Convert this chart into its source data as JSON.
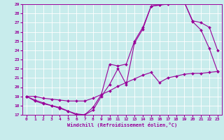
{
  "xlabel": "Windchill (Refroidissement éolien,°C)",
  "bg_color": "#c8ecec",
  "line_color": "#990099",
  "grid_color": "#ffffff",
  "xlim": [
    -0.5,
    23.5
  ],
  "ylim": [
    17,
    29
  ],
  "yticks": [
    17,
    18,
    19,
    20,
    21,
    22,
    23,
    24,
    25,
    26,
    27,
    28,
    29
  ],
  "xticks": [
    0,
    1,
    2,
    3,
    4,
    5,
    6,
    7,
    8,
    9,
    10,
    11,
    12,
    13,
    14,
    15,
    16,
    17,
    18,
    19,
    20,
    21,
    22,
    23
  ],
  "line1_x": [
    0,
    1,
    2,
    3,
    4,
    5,
    6,
    7,
    8,
    9,
    10,
    11,
    12,
    13,
    14,
    15,
    16,
    17,
    18,
    19,
    20,
    21,
    22,
    23
  ],
  "line1_y": [
    19.0,
    18.5,
    18.2,
    18.0,
    17.8,
    17.4,
    17.1,
    17.0,
    17.8,
    19.2,
    22.5,
    22.3,
    22.5,
    25.0,
    26.5,
    28.8,
    28.9,
    29.1,
    29.2,
    29.2,
    27.1,
    26.2,
    24.2,
    21.7
  ],
  "line2_x": [
    0,
    1,
    2,
    3,
    4,
    5,
    6,
    7,
    8,
    9,
    10,
    11,
    12,
    13,
    14,
    15,
    16,
    17,
    18,
    19,
    20,
    21,
    22,
    23
  ],
  "line2_y": [
    19.0,
    18.6,
    18.3,
    18.0,
    17.7,
    17.4,
    17.0,
    17.0,
    17.5,
    19.0,
    20.3,
    22.0,
    20.3,
    24.8,
    26.3,
    28.8,
    28.9,
    29.0,
    29.2,
    29.2,
    27.2,
    27.0,
    26.5,
    24.0
  ],
  "line3_x": [
    0,
    1,
    2,
    3,
    4,
    5,
    6,
    7,
    8,
    9,
    10,
    11,
    12,
    13,
    14,
    15,
    16,
    17,
    18,
    19,
    20,
    21,
    22,
    23
  ],
  "line3_y": [
    19.0,
    19.0,
    18.8,
    18.7,
    18.6,
    18.5,
    18.5,
    18.5,
    18.8,
    19.2,
    19.6,
    20.1,
    20.5,
    20.9,
    21.3,
    21.6,
    20.5,
    21.0,
    21.2,
    21.4,
    21.5,
    21.5,
    21.6,
    21.7
  ]
}
